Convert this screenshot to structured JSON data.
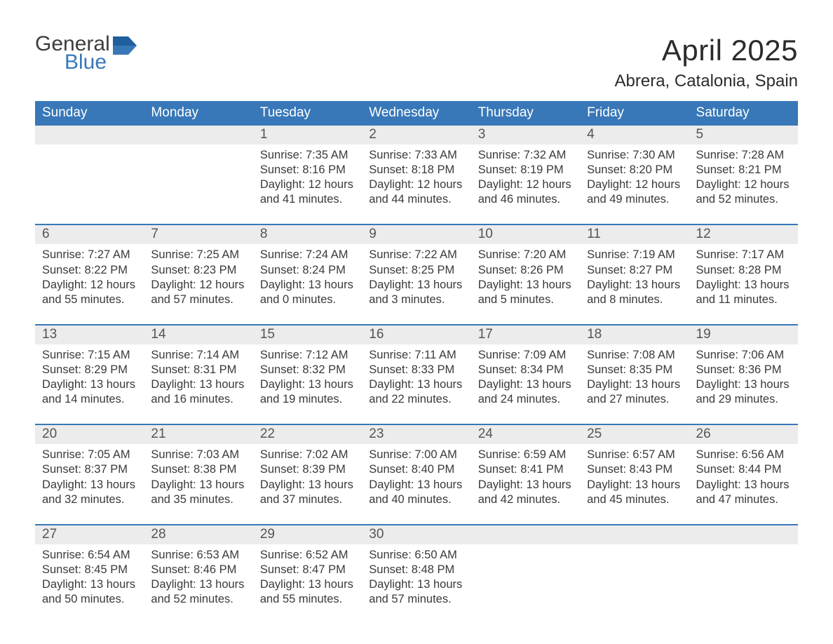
{
  "logo": {
    "word1": "General",
    "word2": "Blue"
  },
  "title": "April 2025",
  "location": "Abrera, Catalonia, Spain",
  "colors": {
    "header_bg": "#3878b8",
    "header_text": "#ffffff",
    "daynum_bg": "#ececec",
    "daynum_text": "#555555",
    "body_text": "#3a3a3a",
    "week_divider": "#3878b8",
    "logo_blue": "#3878b8",
    "logo_dark": "#3d3d3d",
    "page_bg": "#ffffff"
  },
  "typography": {
    "title_fontsize": 42,
    "location_fontsize": 24,
    "day_header_fontsize": 19,
    "daynum_fontsize": 19,
    "body_fontsize": 16.5,
    "logo_fontsize": 30
  },
  "calendar": {
    "day_headers": [
      "Sunday",
      "Monday",
      "Tuesday",
      "Wednesday",
      "Thursday",
      "Friday",
      "Saturday"
    ],
    "weeks": [
      [
        null,
        null,
        {
          "n": "1",
          "sunrise": "7:35 AM",
          "sunset": "8:16 PM",
          "day_h": "12",
          "day_m": "41"
        },
        {
          "n": "2",
          "sunrise": "7:33 AM",
          "sunset": "8:18 PM",
          "day_h": "12",
          "day_m": "44"
        },
        {
          "n": "3",
          "sunrise": "7:32 AM",
          "sunset": "8:19 PM",
          "day_h": "12",
          "day_m": "46"
        },
        {
          "n": "4",
          "sunrise": "7:30 AM",
          "sunset": "8:20 PM",
          "day_h": "12",
          "day_m": "49"
        },
        {
          "n": "5",
          "sunrise": "7:28 AM",
          "sunset": "8:21 PM",
          "day_h": "12",
          "day_m": "52"
        }
      ],
      [
        {
          "n": "6",
          "sunrise": "7:27 AM",
          "sunset": "8:22 PM",
          "day_h": "12",
          "day_m": "55"
        },
        {
          "n": "7",
          "sunrise": "7:25 AM",
          "sunset": "8:23 PM",
          "day_h": "12",
          "day_m": "57"
        },
        {
          "n": "8",
          "sunrise": "7:24 AM",
          "sunset": "8:24 PM",
          "day_h": "13",
          "day_m": "0"
        },
        {
          "n": "9",
          "sunrise": "7:22 AM",
          "sunset": "8:25 PM",
          "day_h": "13",
          "day_m": "3"
        },
        {
          "n": "10",
          "sunrise": "7:20 AM",
          "sunset": "8:26 PM",
          "day_h": "13",
          "day_m": "5"
        },
        {
          "n": "11",
          "sunrise": "7:19 AM",
          "sunset": "8:27 PM",
          "day_h": "13",
          "day_m": "8"
        },
        {
          "n": "12",
          "sunrise": "7:17 AM",
          "sunset": "8:28 PM",
          "day_h": "13",
          "day_m": "11"
        }
      ],
      [
        {
          "n": "13",
          "sunrise": "7:15 AM",
          "sunset": "8:29 PM",
          "day_h": "13",
          "day_m": "14"
        },
        {
          "n": "14",
          "sunrise": "7:14 AM",
          "sunset": "8:31 PM",
          "day_h": "13",
          "day_m": "16"
        },
        {
          "n": "15",
          "sunrise": "7:12 AM",
          "sunset": "8:32 PM",
          "day_h": "13",
          "day_m": "19"
        },
        {
          "n": "16",
          "sunrise": "7:11 AM",
          "sunset": "8:33 PM",
          "day_h": "13",
          "day_m": "22"
        },
        {
          "n": "17",
          "sunrise": "7:09 AM",
          "sunset": "8:34 PM",
          "day_h": "13",
          "day_m": "24"
        },
        {
          "n": "18",
          "sunrise": "7:08 AM",
          "sunset": "8:35 PM",
          "day_h": "13",
          "day_m": "27"
        },
        {
          "n": "19",
          "sunrise": "7:06 AM",
          "sunset": "8:36 PM",
          "day_h": "13",
          "day_m": "29"
        }
      ],
      [
        {
          "n": "20",
          "sunrise": "7:05 AM",
          "sunset": "8:37 PM",
          "day_h": "13",
          "day_m": "32"
        },
        {
          "n": "21",
          "sunrise": "7:03 AM",
          "sunset": "8:38 PM",
          "day_h": "13",
          "day_m": "35"
        },
        {
          "n": "22",
          "sunrise": "7:02 AM",
          "sunset": "8:39 PM",
          "day_h": "13",
          "day_m": "37"
        },
        {
          "n": "23",
          "sunrise": "7:00 AM",
          "sunset": "8:40 PM",
          "day_h": "13",
          "day_m": "40"
        },
        {
          "n": "24",
          "sunrise": "6:59 AM",
          "sunset": "8:41 PM",
          "day_h": "13",
          "day_m": "42"
        },
        {
          "n": "25",
          "sunrise": "6:57 AM",
          "sunset": "8:43 PM",
          "day_h": "13",
          "day_m": "45"
        },
        {
          "n": "26",
          "sunrise": "6:56 AM",
          "sunset": "8:44 PM",
          "day_h": "13",
          "day_m": "47"
        }
      ],
      [
        {
          "n": "27",
          "sunrise": "6:54 AM",
          "sunset": "8:45 PM",
          "day_h": "13",
          "day_m": "50"
        },
        {
          "n": "28",
          "sunrise": "6:53 AM",
          "sunset": "8:46 PM",
          "day_h": "13",
          "day_m": "52"
        },
        {
          "n": "29",
          "sunrise": "6:52 AM",
          "sunset": "8:47 PM",
          "day_h": "13",
          "day_m": "55"
        },
        {
          "n": "30",
          "sunrise": "6:50 AM",
          "sunset": "8:48 PM",
          "day_h": "13",
          "day_m": "57"
        },
        null,
        null,
        null
      ]
    ],
    "labels": {
      "sunrise_prefix": "Sunrise: ",
      "sunset_prefix": "Sunset: ",
      "daylight_prefix": "Daylight: ",
      "hours_word": " hours",
      "and_word": "and ",
      "minutes_word": " minutes."
    }
  }
}
